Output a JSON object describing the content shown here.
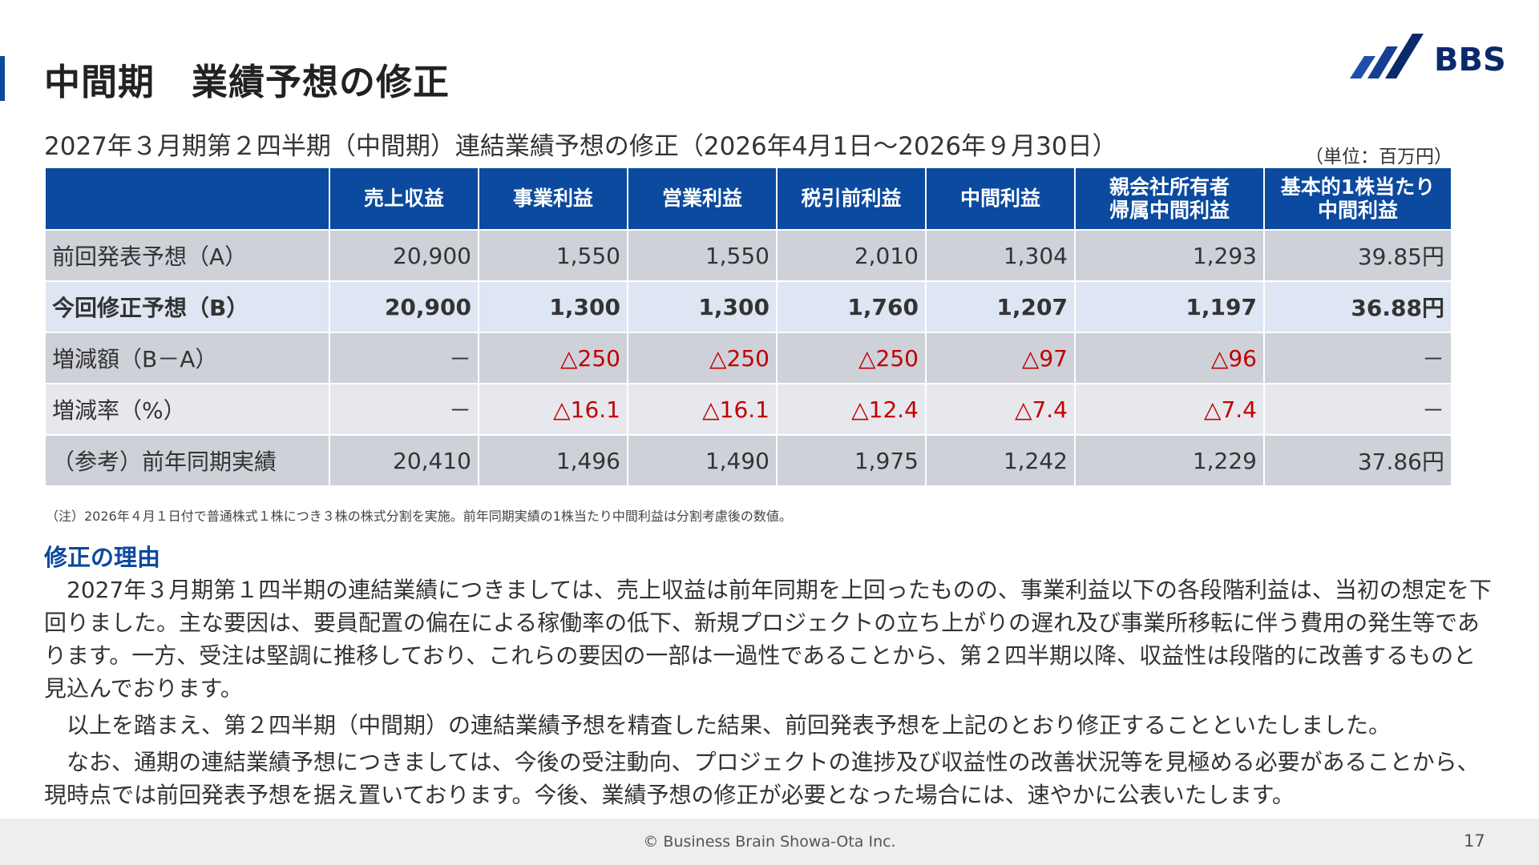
{
  "header": {
    "title": "中間期　業績予想の修正",
    "logo_text": "BBS"
  },
  "colors": {
    "accent": "#0b4a9e",
    "negative": "#c00000",
    "logo": "#0a2a6b"
  },
  "subtitle": "2027年３月期第２四半期（中間期）連結業績予想の修正（2026年4月1日～2026年９月30日）",
  "unit": "（単位：百万円）",
  "table": {
    "columns": [
      "",
      "売上収益",
      "事業利益",
      "営業利益",
      "税引前利益",
      "中間利益",
      "親会社所有者\n帰属中間利益",
      "基本的1株当たり\n中間利益"
    ],
    "rows": [
      {
        "label": "前回発表予想（A）",
        "cells": [
          "20,900",
          "1,550",
          "1,550",
          "2,010",
          "1,304",
          "1,293",
          "39.85円"
        ]
      },
      {
        "label": "今回修正予想（B）",
        "cells": [
          "20,900",
          "1,300",
          "1,300",
          "1,760",
          "1,207",
          "1,197",
          "36.88円"
        ]
      },
      {
        "label": "増減額（B－A）",
        "cells": [
          "－",
          "△250",
          "△250",
          "△250",
          "△97",
          "△96",
          "－"
        ]
      },
      {
        "label": "増減率（%）",
        "cells": [
          "－",
          "△16.1",
          "△16.1",
          "△12.4",
          "△7.4",
          "△7.4",
          "－"
        ]
      },
      {
        "label": "（参考）前年同期実績",
        "cells": [
          "20,410",
          "1,496",
          "1,490",
          "1,975",
          "1,242",
          "1,229",
          "37.86円"
        ]
      }
    ]
  },
  "note": "（注）2026年４月１日付で普通株式１株につき３株の株式分割を実施。前年同期実績の1株当たり中間利益は分割考慮後の数値。",
  "reason": {
    "heading": "修正の理由",
    "paragraphs": [
      "2027年３月期第１四半期の連結業績につきましては、売上収益は前年同期を上回ったものの、事業利益以下の各段階利益は、当初の想定を下回りました。主な要因は、要員配置の偏在による稼働率の低下、新規プロジェクトの立ち上がりの遅れ及び事業所移転に伴う費用の発生等であります。一方、受注は堅調に推移しており、これらの要因の一部は一過性であることから、第２四半期以降、収益性は段階的に改善するものと見込んでおります。",
      "以上を踏まえ、第２四半期（中間期）の連結業績予想を精査した結果、前回発表予想を上記のとおり修正することといたしました。",
      "なお、通期の連結業績予想につきましては、今後の受注動向、プロジェクトの進捗及び収益性の改善状況等を見極める必要があることから、現時点では前回発表予想を据え置いております。今後、業績予想の修正が必要となった場合には、速やかに公表いたします。"
    ]
  },
  "footer": {
    "copyright": "© Business Brain Showa-Ota Inc.",
    "page_number": "17"
  }
}
